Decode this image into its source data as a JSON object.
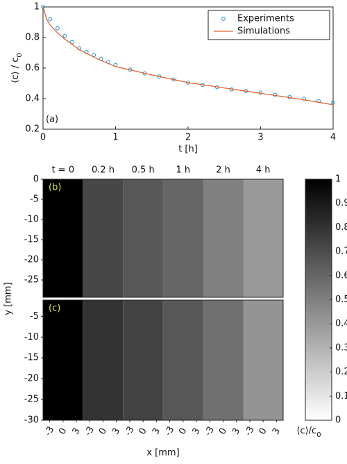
{
  "chart_data": [
    {
      "type": "line",
      "xlabel": "t [h]",
      "ylabel": [
        "⟨c⟩ / c",
        "0"
      ],
      "annotation": "(a)",
      "xlim": [
        0,
        4
      ],
      "xticks": [
        0,
        1,
        2,
        3,
        4
      ],
      "ylim": [
        0.2,
        1
      ],
      "yticks": [
        0.2,
        0.4,
        0.6,
        0.8,
        1
      ],
      "legend": "upper right",
      "series": [
        {
          "name": "Experiments",
          "color": "#1f8fd0",
          "marker": "circle",
          "x": [
            0,
            0.1,
            0.2,
            0.3,
            0.4,
            0.5,
            0.6,
            0.7,
            0.8,
            0.9,
            1.0,
            1.2,
            1.4,
            1.6,
            1.8,
            2.0,
            2.2,
            2.4,
            2.6,
            2.8,
            3.0,
            3.2,
            3.4,
            3.6,
            3.8,
            4.0
          ],
          "values": [
            1.0,
            0.92,
            0.86,
            0.81,
            0.77,
            0.73,
            0.705,
            0.685,
            0.66,
            0.64,
            0.62,
            0.59,
            0.565,
            0.545,
            0.525,
            0.505,
            0.49,
            0.475,
            0.46,
            0.45,
            0.44,
            0.425,
            0.41,
            0.4,
            0.385,
            0.375
          ]
        },
        {
          "name": "Simulations",
          "color": "#e0622a",
          "marker": "line",
          "x": [
            0,
            0.05,
            0.1,
            0.2,
            0.3,
            0.5,
            0.75,
            1,
            1.5,
            2,
            2.5,
            3,
            3.5,
            4
          ],
          "values": [
            1,
            0.92,
            0.88,
            0.83,
            0.79,
            0.72,
            0.66,
            0.61,
            0.555,
            0.505,
            0.47,
            0.435,
            0.4,
            0.36
          ]
        }
      ]
    },
    {
      "type": "image",
      "columns": [
        "t = 0",
        "0.2 h",
        "0.5 h",
        "1 h",
        "2 h",
        "4 h"
      ],
      "xlabel": "x [mm]",
      "ylabel": "y [mm]",
      "xlim": [
        -4.5,
        4.5
      ],
      "xticks": [
        -3,
        0,
        3
      ],
      "rows": [
        {
          "label": "(b)",
          "ylim": [
            -29.3,
            0
          ],
          "yticks": [
            0,
            -5,
            -10,
            -15,
            -20,
            -25
          ],
          "values": [
            1,
            0.72,
            0.66,
            0.6,
            0.5,
            0.4
          ]
        },
        {
          "label": "(c)",
          "ylim": [
            -30,
            -1.1
          ],
          "yticks": [
            -5,
            -10,
            -15,
            -20,
            -25,
            -30
          ],
          "values": [
            1,
            0.8,
            0.74,
            0.66,
            0.56,
            0.42
          ]
        }
      ],
      "colorbar": {
        "label": [
          "⟨c⟩/c",
          "0"
        ],
        "lim": [
          0,
          1
        ],
        "ticks": [
          0,
          0.1,
          0.2,
          0.3,
          0.4,
          0.5,
          0.6,
          0.7,
          0.8,
          0.9,
          1
        ]
      }
    }
  ]
}
